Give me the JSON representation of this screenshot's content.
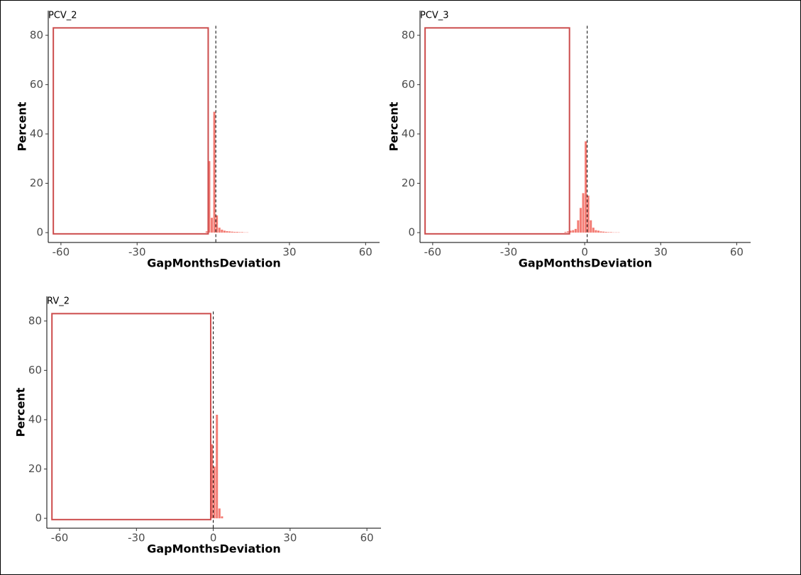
{
  "chart_data": [
    {
      "type": "histogram",
      "title": "PCV_2",
      "xlabel": "GapMonthsDeviation",
      "ylabel": "Percent",
      "bins": [
        -3,
        -2,
        -1,
        0,
        1,
        2,
        3,
        4,
        5,
        6,
        7,
        8,
        9,
        10,
        11,
        12,
        13,
        14
      ],
      "values": [
        0.5,
        29,
        6,
        49,
        7,
        2,
        1.2,
        0.8,
        0.6,
        0.5,
        0.4,
        0.3,
        0.3,
        0.2,
        0.2,
        0.1,
        0.1
      ],
      "color": "#f26b63",
      "xlim": [
        -65,
        65.5
      ],
      "ylim": [
        -4,
        90
      ],
      "xticks": [
        -60,
        -30,
        30,
        60
      ],
      "yticks": [
        0,
        20,
        40,
        60,
        80
      ],
      "reference_line": 1,
      "highlight_box": {
        "x": [
          -63,
          -2
        ],
        "y": [
          -0.5,
          83
        ],
        "color": "#cc4c4c"
      }
    },
    {
      "type": "histogram",
      "title": "PCV_3",
      "xlabel": "GapMonthsDeviation",
      "ylabel": "Percent",
      "bins": [
        -8,
        -7,
        -6,
        -5,
        -4,
        -3,
        -2,
        -1,
        0,
        1,
        2,
        3,
        4,
        5,
        6,
        7,
        8,
        9,
        10,
        11,
        12,
        13,
        14
      ],
      "values": [
        0.3,
        0.5,
        0.8,
        1,
        1.5,
        5,
        10,
        16,
        37,
        15,
        5,
        2,
        1,
        0.8,
        0.5,
        0.4,
        0.3,
        0.2,
        0.2,
        0.1,
        0.1,
        0.1
      ],
      "color": "#f26b63",
      "xlim": [
        -65,
        65.5
      ],
      "ylim": [
        -4,
        90
      ],
      "xticks": [
        -60,
        -30,
        0,
        30,
        60
      ],
      "yticks": [
        0,
        20,
        40,
        60,
        80
      ],
      "reference_line": 1,
      "highlight_box": {
        "x": [
          -63,
          -6
        ],
        "y": [
          -0.5,
          83
        ],
        "color": "#cc4c4c"
      }
    },
    {
      "type": "histogram",
      "title": "RV_2",
      "xlabel": "GapMonthsDeviation",
      "ylabel": "Percent",
      "bins": [
        -1,
        0,
        1,
        2,
        3,
        4
      ],
      "values": [
        30,
        21,
        42,
        4,
        0.8
      ],
      "color": "#f26b63",
      "xlim": [
        -65,
        65.5
      ],
      "ylim": [
        -4,
        90
      ],
      "xticks": [
        -60,
        -30,
        0,
        30,
        60
      ],
      "yticks": [
        0,
        20,
        40,
        60,
        80
      ],
      "reference_line": 0,
      "highlight_box": {
        "x": [
          -63,
          -1
        ],
        "y": [
          -0.5,
          83
        ],
        "color": "#cc4c4c"
      }
    }
  ]
}
